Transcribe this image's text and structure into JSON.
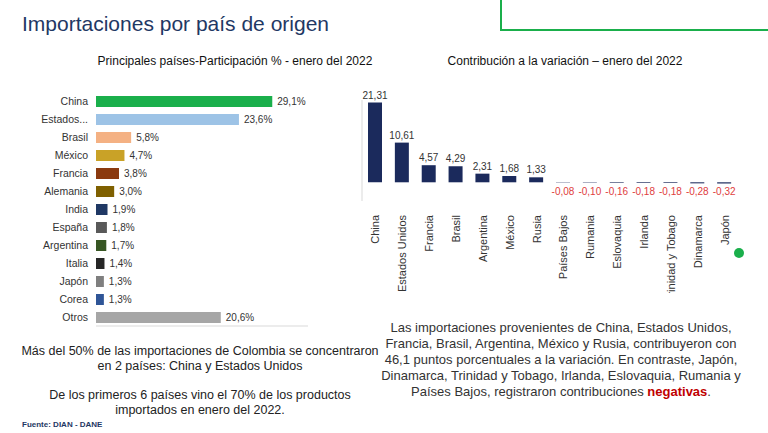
{
  "title": "Importaciones por país de origen",
  "source": "Fuente: DIAN - DANE",
  "chart_data": [
    {
      "type": "bar",
      "orientation": "horizontal",
      "title": "Principales países-Participación % - enero del 2022",
      "categories": [
        "China",
        "Estados...",
        "Brasil",
        "México",
        "Francia",
        "Alemania",
        "India",
        "España",
        "Argentina",
        "Italia",
        "Japón",
        "Corea",
        "Otros"
      ],
      "values": [
        29.1,
        23.6,
        5.8,
        4.7,
        3.8,
        3.0,
        1.9,
        1.8,
        1.7,
        1.4,
        1.3,
        1.3,
        20.6
      ],
      "value_labels": [
        "29,1%",
        "23,6%",
        "5,8%",
        "4,7%",
        "3,8%",
        "3,0%",
        "1,9%",
        "1,8%",
        "1,7%",
        "1,4%",
        "1,3%",
        "1,3%",
        "20,6%"
      ],
      "colors": [
        "#1aaf4b",
        "#9dc3e6",
        "#f4b183",
        "#c9a227",
        "#8b3a0f",
        "#7f6000",
        "#1f3864",
        "#595959",
        "#375623",
        "#262626",
        "#7f7f7f",
        "#2f5597",
        "#a6a6a6"
      ],
      "xlim": [
        0,
        35
      ],
      "data_labels": true,
      "tick_labels": "y",
      "annotations": [
        "Más del 50% de las importaciones de Colombia se concentraron en 2 países: China y Estados Unidos",
        "De los primeros 6 países vino el 70% de los productos importados en enero del 2022."
      ]
    },
    {
      "type": "bar",
      "title": "Contribución a la variación – enero del 2022",
      "categories": [
        "China",
        "Estados Unidos",
        "Francia",
        "Brasil",
        "Argentina",
        "México",
        "Rusia",
        "Países Bajos",
        "Rumania",
        "Eslovaquia",
        "Irlanda",
        "Trinidad y Tobago",
        "Dinamarca",
        "Japón"
      ],
      "values": [
        21.31,
        10.61,
        4.57,
        4.29,
        2.31,
        1.68,
        1.33,
        -0.08,
        -0.1,
        -0.16,
        -0.18,
        -0.18,
        -0.28,
        -0.32
      ],
      "value_labels": [
        "21,31",
        "10,61",
        "4,57",
        "4,29",
        "2,31",
        "1,68",
        "1,33",
        "-0,08",
        "-0,10",
        "-0,16",
        "-0,18",
        "-0,18",
        "-0,28",
        "-0,32"
      ],
      "color": "#1b2a5c",
      "ylim": [
        -5,
        22
      ],
      "data_labels": true,
      "tick_labels": "x",
      "annotations": [
        "Las importaciones provenientes de China, Estados Unidos, Francia, Brasil, Argentina, México y Rusia, contribuyeron con 46,1 puntos porcentuales a la variación. En contraste, Japón, Dinamarca, Trinidad y Tobago, Irlanda, Eslovaquia, Rumania y Países Bajos, registraron contribuciones ",
        "negativas",
        "."
      ]
    }
  ]
}
